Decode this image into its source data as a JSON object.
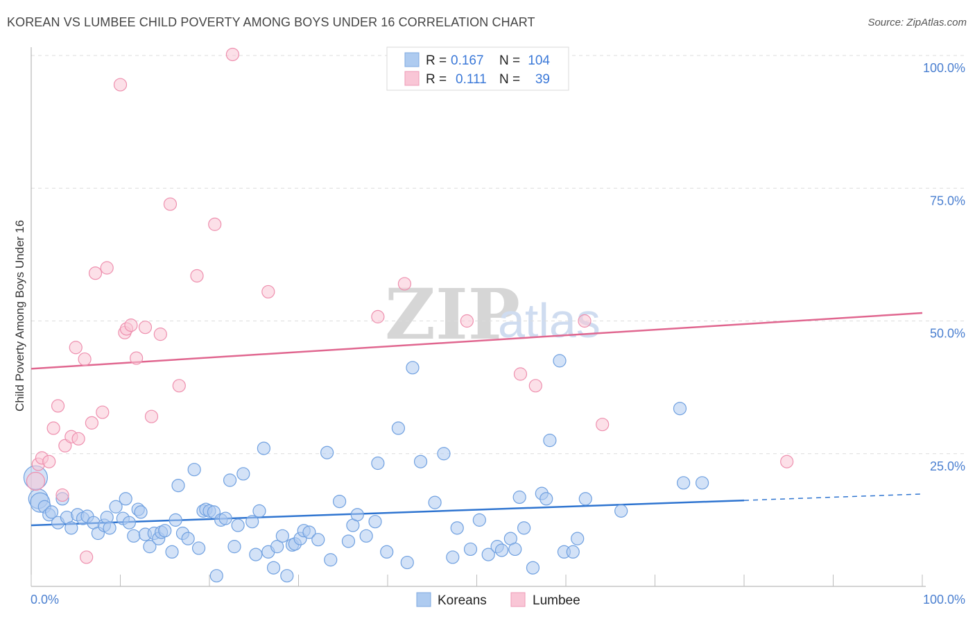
{
  "header": {
    "title": "KOREAN VS LUMBEE CHILD POVERTY AMONG BOYS UNDER 16 CORRELATION CHART",
    "source": "Source: ZipAtlas.com"
  },
  "legend": {
    "r_label": "R =",
    "n_label": "N =",
    "series": [
      {
        "r": "0.167",
        "n": "104",
        "color": "#aecbf0",
        "stroke": "#7fa8e0"
      },
      {
        "r": "0.111",
        "n": "39",
        "color": "#f9c6d6",
        "stroke": "#ee9ab5"
      }
    ]
  },
  "watermark": {
    "zip": "ZIP",
    "atlas": "atlas"
  },
  "chart_data": {
    "type": "scatter",
    "ylabel": "Child Poverty Among Boys Under 16",
    "xlim": [
      0,
      100
    ],
    "ylim": [
      0,
      100
    ],
    "x_tick_labels": [
      "0.0%",
      "100.0%"
    ],
    "y_tick_labels": [
      "25.0%",
      "50.0%",
      "75.0%",
      "100.0%"
    ],
    "y_tick_values": [
      25,
      50,
      75,
      100
    ],
    "grid": "horizontal dashed",
    "series": [
      {
        "name": "Koreans",
        "color": "#6fa0e0",
        "fill": "rgba(174,203,240,0.55)",
        "trend": {
          "x": [
            0,
            80
          ],
          "y": [
            11.5,
            16.2
          ],
          "dashed_to": [
            100,
            17.4
          ],
          "color": "#2e74d0"
        },
        "points": [
          [
            0.5,
            20.5
          ],
          [
            0.8,
            16.5
          ],
          [
            1.0,
            15.8
          ],
          [
            1.5,
            15.0
          ],
          [
            2.0,
            13.5
          ],
          [
            2.3,
            14.0
          ],
          [
            3.0,
            12.0
          ],
          [
            3.5,
            16.5
          ],
          [
            4.0,
            13.0
          ],
          [
            4.5,
            11.0
          ],
          [
            5.2,
            13.5
          ],
          [
            5.8,
            12.8
          ],
          [
            6.3,
            13.2
          ],
          [
            7.0,
            12.0
          ],
          [
            7.5,
            10.0
          ],
          [
            8.2,
            11.5
          ],
          [
            8.5,
            13.0
          ],
          [
            8.8,
            11.0
          ],
          [
            9.5,
            15.0
          ],
          [
            10.3,
            12.8
          ],
          [
            10.6,
            16.5
          ],
          [
            11.0,
            12.0
          ],
          [
            11.5,
            9.5
          ],
          [
            12.0,
            14.5
          ],
          [
            12.3,
            14.0
          ],
          [
            12.8,
            9.8
          ],
          [
            13.3,
            7.5
          ],
          [
            13.8,
            10.0
          ],
          [
            14.3,
            9.0
          ],
          [
            14.6,
            10.2
          ],
          [
            15.0,
            10.5
          ],
          [
            15.8,
            6.5
          ],
          [
            16.2,
            12.5
          ],
          [
            16.5,
            19.0
          ],
          [
            17.0,
            10.0
          ],
          [
            17.6,
            9.0
          ],
          [
            18.3,
            22.0
          ],
          [
            18.8,
            7.2
          ],
          [
            19.3,
            14.2
          ],
          [
            19.6,
            14.5
          ],
          [
            20.0,
            14.2
          ],
          [
            20.5,
            14.0
          ],
          [
            20.8,
            2.0
          ],
          [
            21.3,
            12.5
          ],
          [
            21.8,
            12.8
          ],
          [
            22.3,
            20.0
          ],
          [
            22.8,
            7.5
          ],
          [
            23.2,
            11.5
          ],
          [
            23.8,
            21.2
          ],
          [
            24.8,
            12.2
          ],
          [
            25.2,
            6.0
          ],
          [
            25.6,
            14.2
          ],
          [
            26.1,
            26.0
          ],
          [
            26.6,
            6.5
          ],
          [
            27.2,
            3.5
          ],
          [
            27.6,
            7.5
          ],
          [
            28.2,
            9.5
          ],
          [
            28.7,
            2.0
          ],
          [
            29.3,
            7.8
          ],
          [
            29.6,
            8.0
          ],
          [
            30.2,
            9.0
          ],
          [
            30.6,
            10.5
          ],
          [
            31.2,
            10.2
          ],
          [
            32.2,
            8.8
          ],
          [
            33.2,
            25.2
          ],
          [
            33.6,
            5.0
          ],
          [
            34.6,
            16.0
          ],
          [
            35.6,
            8.5
          ],
          [
            36.1,
            11.5
          ],
          [
            36.6,
            13.5
          ],
          [
            37.6,
            9.5
          ],
          [
            38.6,
            12.2
          ],
          [
            38.9,
            23.2
          ],
          [
            39.9,
            6.5
          ],
          [
            41.2,
            29.8
          ],
          [
            42.2,
            4.5
          ],
          [
            42.8,
            41.2
          ],
          [
            43.7,
            23.5
          ],
          [
            45.3,
            15.8
          ],
          [
            46.3,
            25.0
          ],
          [
            47.3,
            5.5
          ],
          [
            47.8,
            11.0
          ],
          [
            49.3,
            7.0
          ],
          [
            50.3,
            12.5
          ],
          [
            51.3,
            6.0
          ],
          [
            52.3,
            7.5
          ],
          [
            52.8,
            6.8
          ],
          [
            53.8,
            9.0
          ],
          [
            54.3,
            7.0
          ],
          [
            54.8,
            16.8
          ],
          [
            55.3,
            11.0
          ],
          [
            56.3,
            3.5
          ],
          [
            57.3,
            17.5
          ],
          [
            57.8,
            16.5
          ],
          [
            58.2,
            27.5
          ],
          [
            59.3,
            42.5
          ],
          [
            59.8,
            6.5
          ],
          [
            60.8,
            6.5
          ],
          [
            61.3,
            9.0
          ],
          [
            62.2,
            16.5
          ],
          [
            66.2,
            14.2
          ],
          [
            72.8,
            33.5
          ],
          [
            73.2,
            19.5
          ],
          [
            75.3,
            19.5
          ]
        ]
      },
      {
        "name": "Lumbee",
        "color": "#ee8fae",
        "fill": "rgba(249,198,214,0.55)",
        "trend": {
          "x": [
            0,
            100
          ],
          "y": [
            41.0,
            51.5
          ],
          "color": "#e0668f"
        },
        "points": [
          [
            0.5,
            19.8
          ],
          [
            0.8,
            23.0
          ],
          [
            1.2,
            24.2
          ],
          [
            2.0,
            23.5
          ],
          [
            2.5,
            29.8
          ],
          [
            3.0,
            34.0
          ],
          [
            3.5,
            17.2
          ],
          [
            3.8,
            26.5
          ],
          [
            4.5,
            28.2
          ],
          [
            5.0,
            45.0
          ],
          [
            5.3,
            27.8
          ],
          [
            6.0,
            42.8
          ],
          [
            6.2,
            5.5
          ],
          [
            6.8,
            30.8
          ],
          [
            7.2,
            59.0
          ],
          [
            8.0,
            32.8
          ],
          [
            8.5,
            60.0
          ],
          [
            10.0,
            94.5
          ],
          [
            10.5,
            47.8
          ],
          [
            10.7,
            48.5
          ],
          [
            11.2,
            49.2
          ],
          [
            11.8,
            43.0
          ],
          [
            12.8,
            48.8
          ],
          [
            13.5,
            32.0
          ],
          [
            14.5,
            47.5
          ],
          [
            15.6,
            72.0
          ],
          [
            16.6,
            37.8
          ],
          [
            18.6,
            58.5
          ],
          [
            20.6,
            68.2
          ],
          [
            22.6,
            100.2
          ],
          [
            26.6,
            55.5
          ],
          [
            38.9,
            50.8
          ],
          [
            41.9,
            57.0
          ],
          [
            48.9,
            50.0
          ],
          [
            54.9,
            40.0
          ],
          [
            56.6,
            37.8
          ],
          [
            62.1,
            50.0
          ],
          [
            64.1,
            30.5
          ],
          [
            84.8,
            23.5
          ]
        ]
      }
    ]
  },
  "bottom_legend": {
    "items": [
      {
        "label": "Koreans",
        "fill": "#aecbf0",
        "stroke": "#7fa8e0"
      },
      {
        "label": "Lumbee",
        "fill": "#f9c6d6",
        "stroke": "#ee9ab5"
      }
    ]
  }
}
